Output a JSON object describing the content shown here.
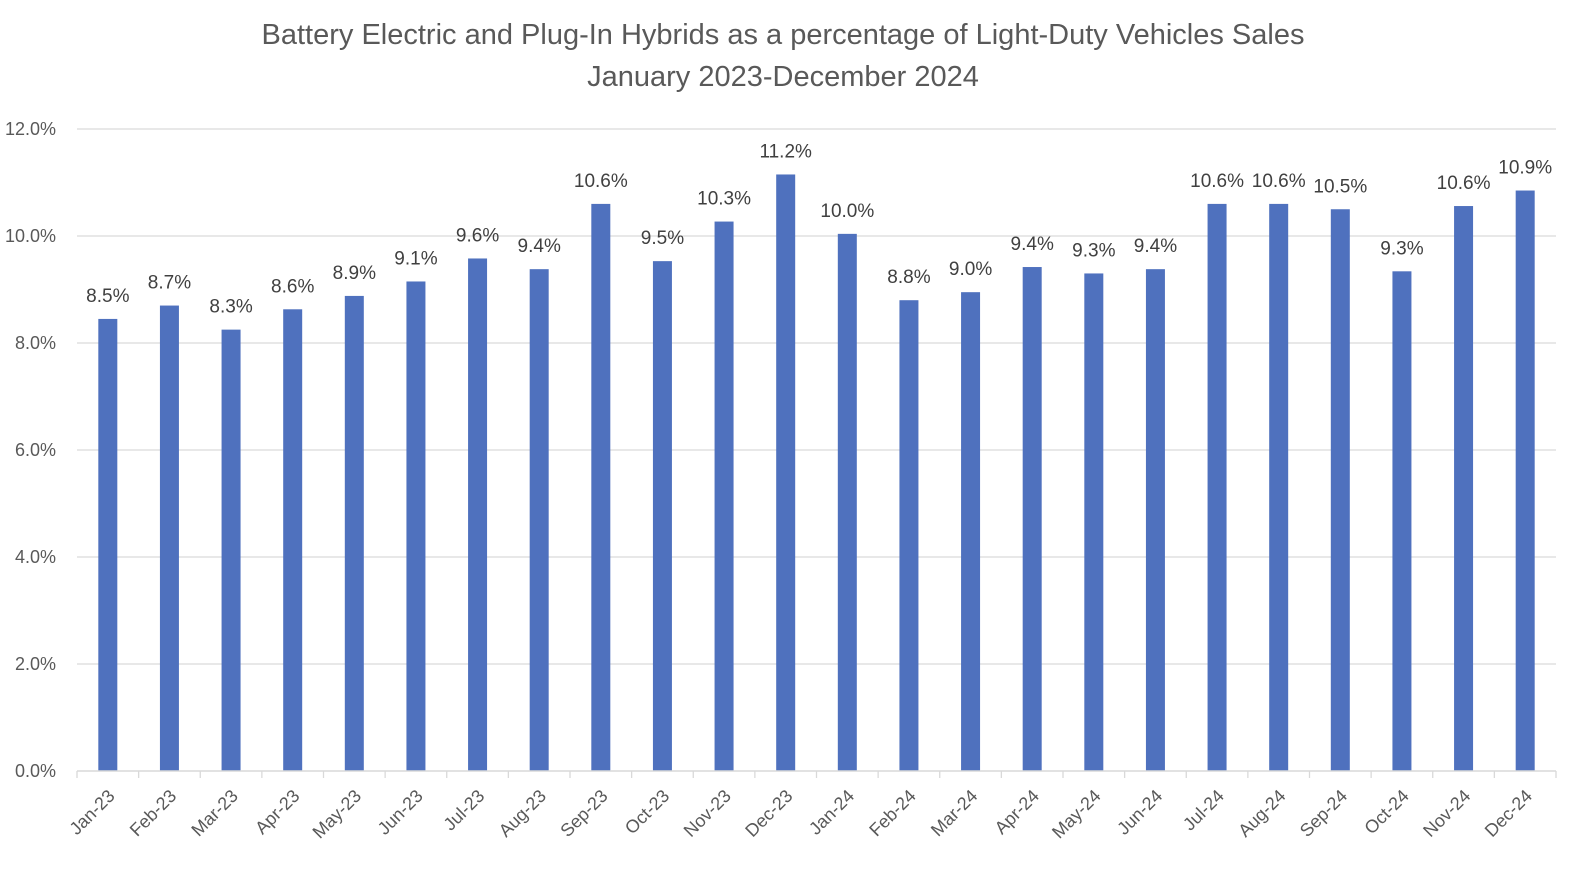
{
  "chart_data": {
    "type": "bar",
    "title": "Battery Electric and Plug-In Hybrids as a percentage of Light-Duty Vehicles Sales",
    "subtitle": "January 2023-December 2024",
    "xlabel": "",
    "ylabel": "",
    "ylim": [
      0,
      12
    ],
    "ytick_step": 2,
    "ytick_labels": [
      "0.0%",
      "2.0%",
      "4.0%",
      "6.0%",
      "8.0%",
      "10.0%",
      "12.0%"
    ],
    "grid": true,
    "legend": "none",
    "bar_color": "#4F71BE",
    "categories": [
      "Jan-23",
      "Feb-23",
      "Mar-23",
      "Apr-23",
      "May-23",
      "Jun-23",
      "Jul-23",
      "Aug-23",
      "Sep-23",
      "Oct-23",
      "Nov-23",
      "Dec-23",
      "Jan-24",
      "Feb-24",
      "Mar-24",
      "Apr-24",
      "May-24",
      "Jun-24",
      "Jul-24",
      "Aug-24",
      "Sep-24",
      "Oct-24",
      "Nov-24",
      "Dec-24"
    ],
    "values": [
      8.45,
      8.7,
      8.25,
      8.63,
      8.88,
      9.15,
      9.58,
      9.38,
      10.6,
      9.53,
      10.27,
      11.15,
      10.04,
      8.8,
      8.95,
      9.42,
      9.3,
      9.38,
      10.6,
      10.6,
      10.5,
      9.34,
      10.56,
      10.85
    ],
    "data_labels": [
      "8.5%",
      "8.7%",
      "8.3%",
      "8.6%",
      "8.9%",
      "9.1%",
      "9.6%",
      "9.4%",
      "10.6%",
      "9.5%",
      "10.3%",
      "11.2%",
      "10.0%",
      "8.8%",
      "9.0%",
      "9.4%",
      "9.3%",
      "9.4%",
      "10.6%",
      "10.6%",
      "10.5%",
      "9.3%",
      "10.6%",
      "10.9%"
    ]
  }
}
